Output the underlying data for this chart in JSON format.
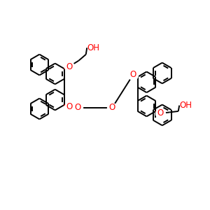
{
  "bg_color": "#ffffff",
  "bond_color": "#000000",
  "heteroatom_color": "#ff0000",
  "bond_width": 1.4,
  "figsize": [
    3.0,
    3.0
  ],
  "dpi": 100,
  "xlim": [
    0,
    10
  ],
  "ylim": [
    0,
    10
  ],
  "ring_r": 0.5,
  "font_size": 8.5
}
